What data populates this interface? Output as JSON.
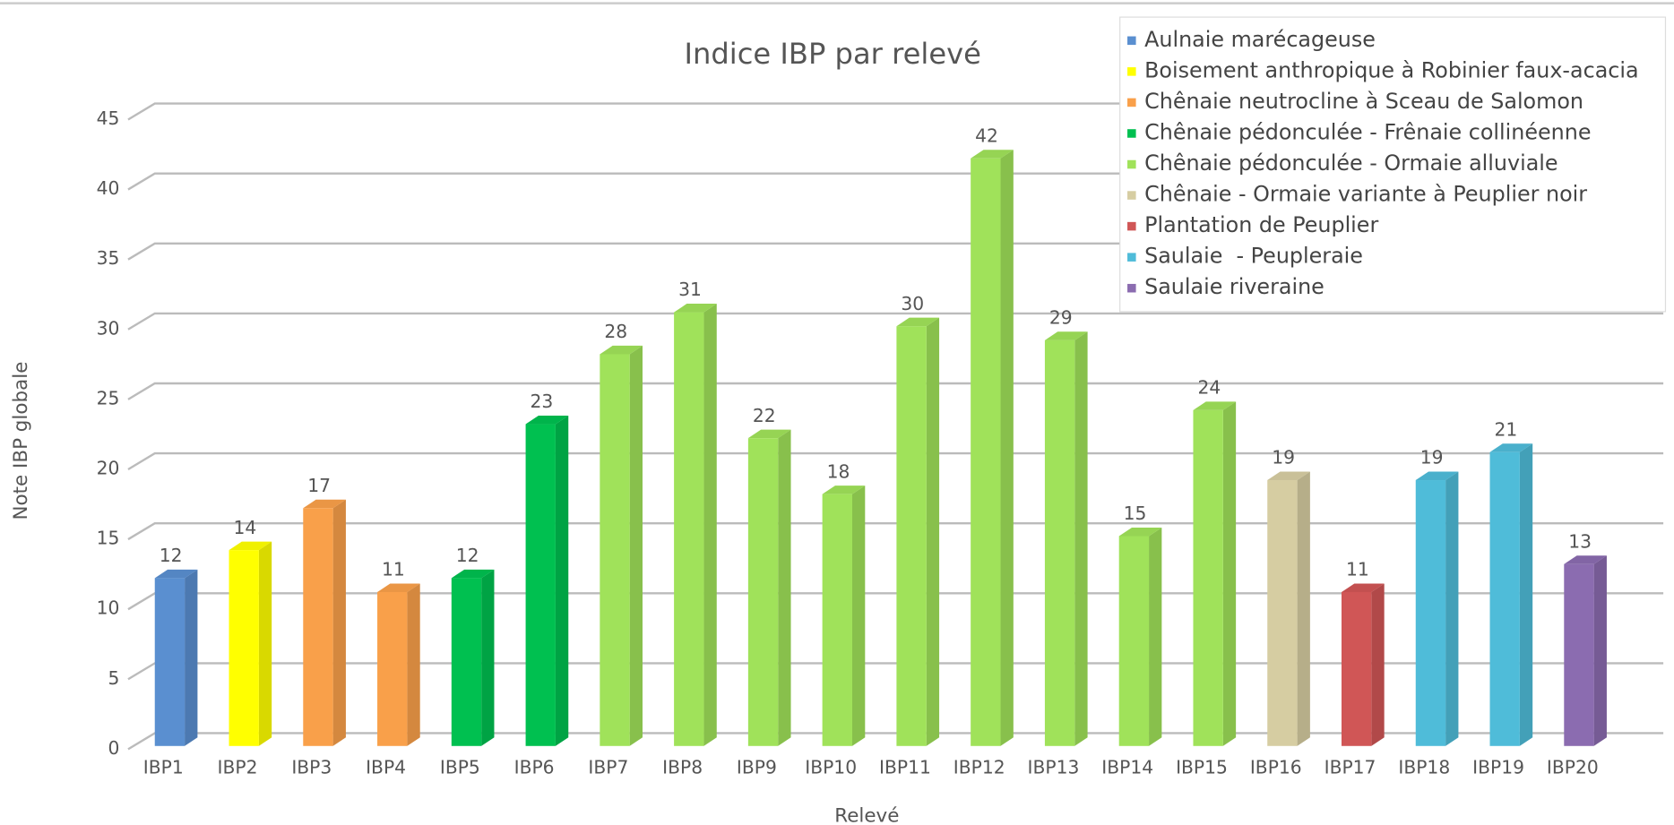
{
  "chart_data": {
    "type": "bar",
    "title": "Indice IBP par relevé",
    "x_label": "Relevé",
    "y_label": "Note IBP globale",
    "categories": [
      "IBP1",
      "IBP2",
      "IBP3",
      "IBP4",
      "IBP5",
      "IBP6",
      "IBP7",
      "IBP8",
      "IBP9",
      "IBP10",
      "IBP11",
      "IBP12",
      "IBP13",
      "IBP14",
      "IBP15",
      "IBP16",
      "IBP17",
      "IBP18",
      "IBP19",
      "IBP20"
    ],
    "series": [
      {
        "name": "Aulnaie marécageuse",
        "color": "#5a8fd0",
        "values": [
          12,
          null,
          null,
          null,
          null,
          null,
          null,
          null,
          null,
          null,
          null,
          null,
          null,
          null,
          null,
          null,
          null,
          null,
          null,
          null
        ]
      },
      {
        "name": "Boisement anthropique à Robinier faux-acacia",
        "color": "#ffff00",
        "values": [
          null,
          14,
          null,
          null,
          null,
          null,
          null,
          null,
          null,
          null,
          null,
          null,
          null,
          null,
          null,
          null,
          null,
          null,
          null,
          null
        ]
      },
      {
        "name": "Chênaie neutrocline à Sceau de Salomon",
        "color": "#f9a04a",
        "values": [
          null,
          null,
          17,
          11,
          null,
          null,
          null,
          null,
          null,
          null,
          null,
          null,
          null,
          null,
          null,
          null,
          null,
          null,
          null,
          null
        ]
      },
      {
        "name": "Chênaie pédonculée - Frênaie collinéenne",
        "color": "#00c050",
        "values": [
          null,
          null,
          null,
          null,
          12,
          23,
          null,
          null,
          null,
          null,
          null,
          null,
          null,
          null,
          null,
          null,
          null,
          null,
          null,
          null
        ]
      },
      {
        "name": "Chênaie pédonculée - Ormaie alluviale",
        "color": "#a0e25a",
        "values": [
          null,
          null,
          null,
          null,
          null,
          null,
          28,
          31,
          22,
          18,
          30,
          42,
          29,
          15,
          24,
          null,
          null,
          null,
          null,
          null
        ]
      },
      {
        "name": "Chênaie - Ormaie variante à Peuplier noir",
        "color": "#d6cda2",
        "values": [
          null,
          null,
          null,
          null,
          null,
          null,
          null,
          null,
          null,
          null,
          null,
          null,
          null,
          null,
          null,
          19,
          null,
          null,
          null,
          null
        ]
      },
      {
        "name": "Plantation de Peuplier",
        "color": "#d05656",
        "values": [
          null,
          null,
          null,
          null,
          null,
          null,
          null,
          null,
          null,
          null,
          null,
          null,
          null,
          null,
          null,
          null,
          11,
          null,
          null,
          null
        ]
      },
      {
        "name": "Saulaie  - Peupleraie",
        "color": "#4fbcd9",
        "values": [
          null,
          null,
          null,
          null,
          null,
          null,
          null,
          null,
          null,
          null,
          null,
          null,
          null,
          null,
          null,
          null,
          null,
          19,
          21,
          null
        ]
      },
      {
        "name": "Saulaie riveraine",
        "color": "#8b6cb0",
        "values": [
          null,
          null,
          null,
          null,
          null,
          null,
          null,
          null,
          null,
          null,
          null,
          null,
          null,
          null,
          null,
          null,
          null,
          null,
          null,
          13
        ]
      }
    ],
    "ylim": [
      0,
      45
    ],
    "yticks": [
      0,
      5,
      10,
      15,
      20,
      25,
      30,
      35,
      40,
      45
    ],
    "grid": true,
    "legend": "top-right"
  }
}
